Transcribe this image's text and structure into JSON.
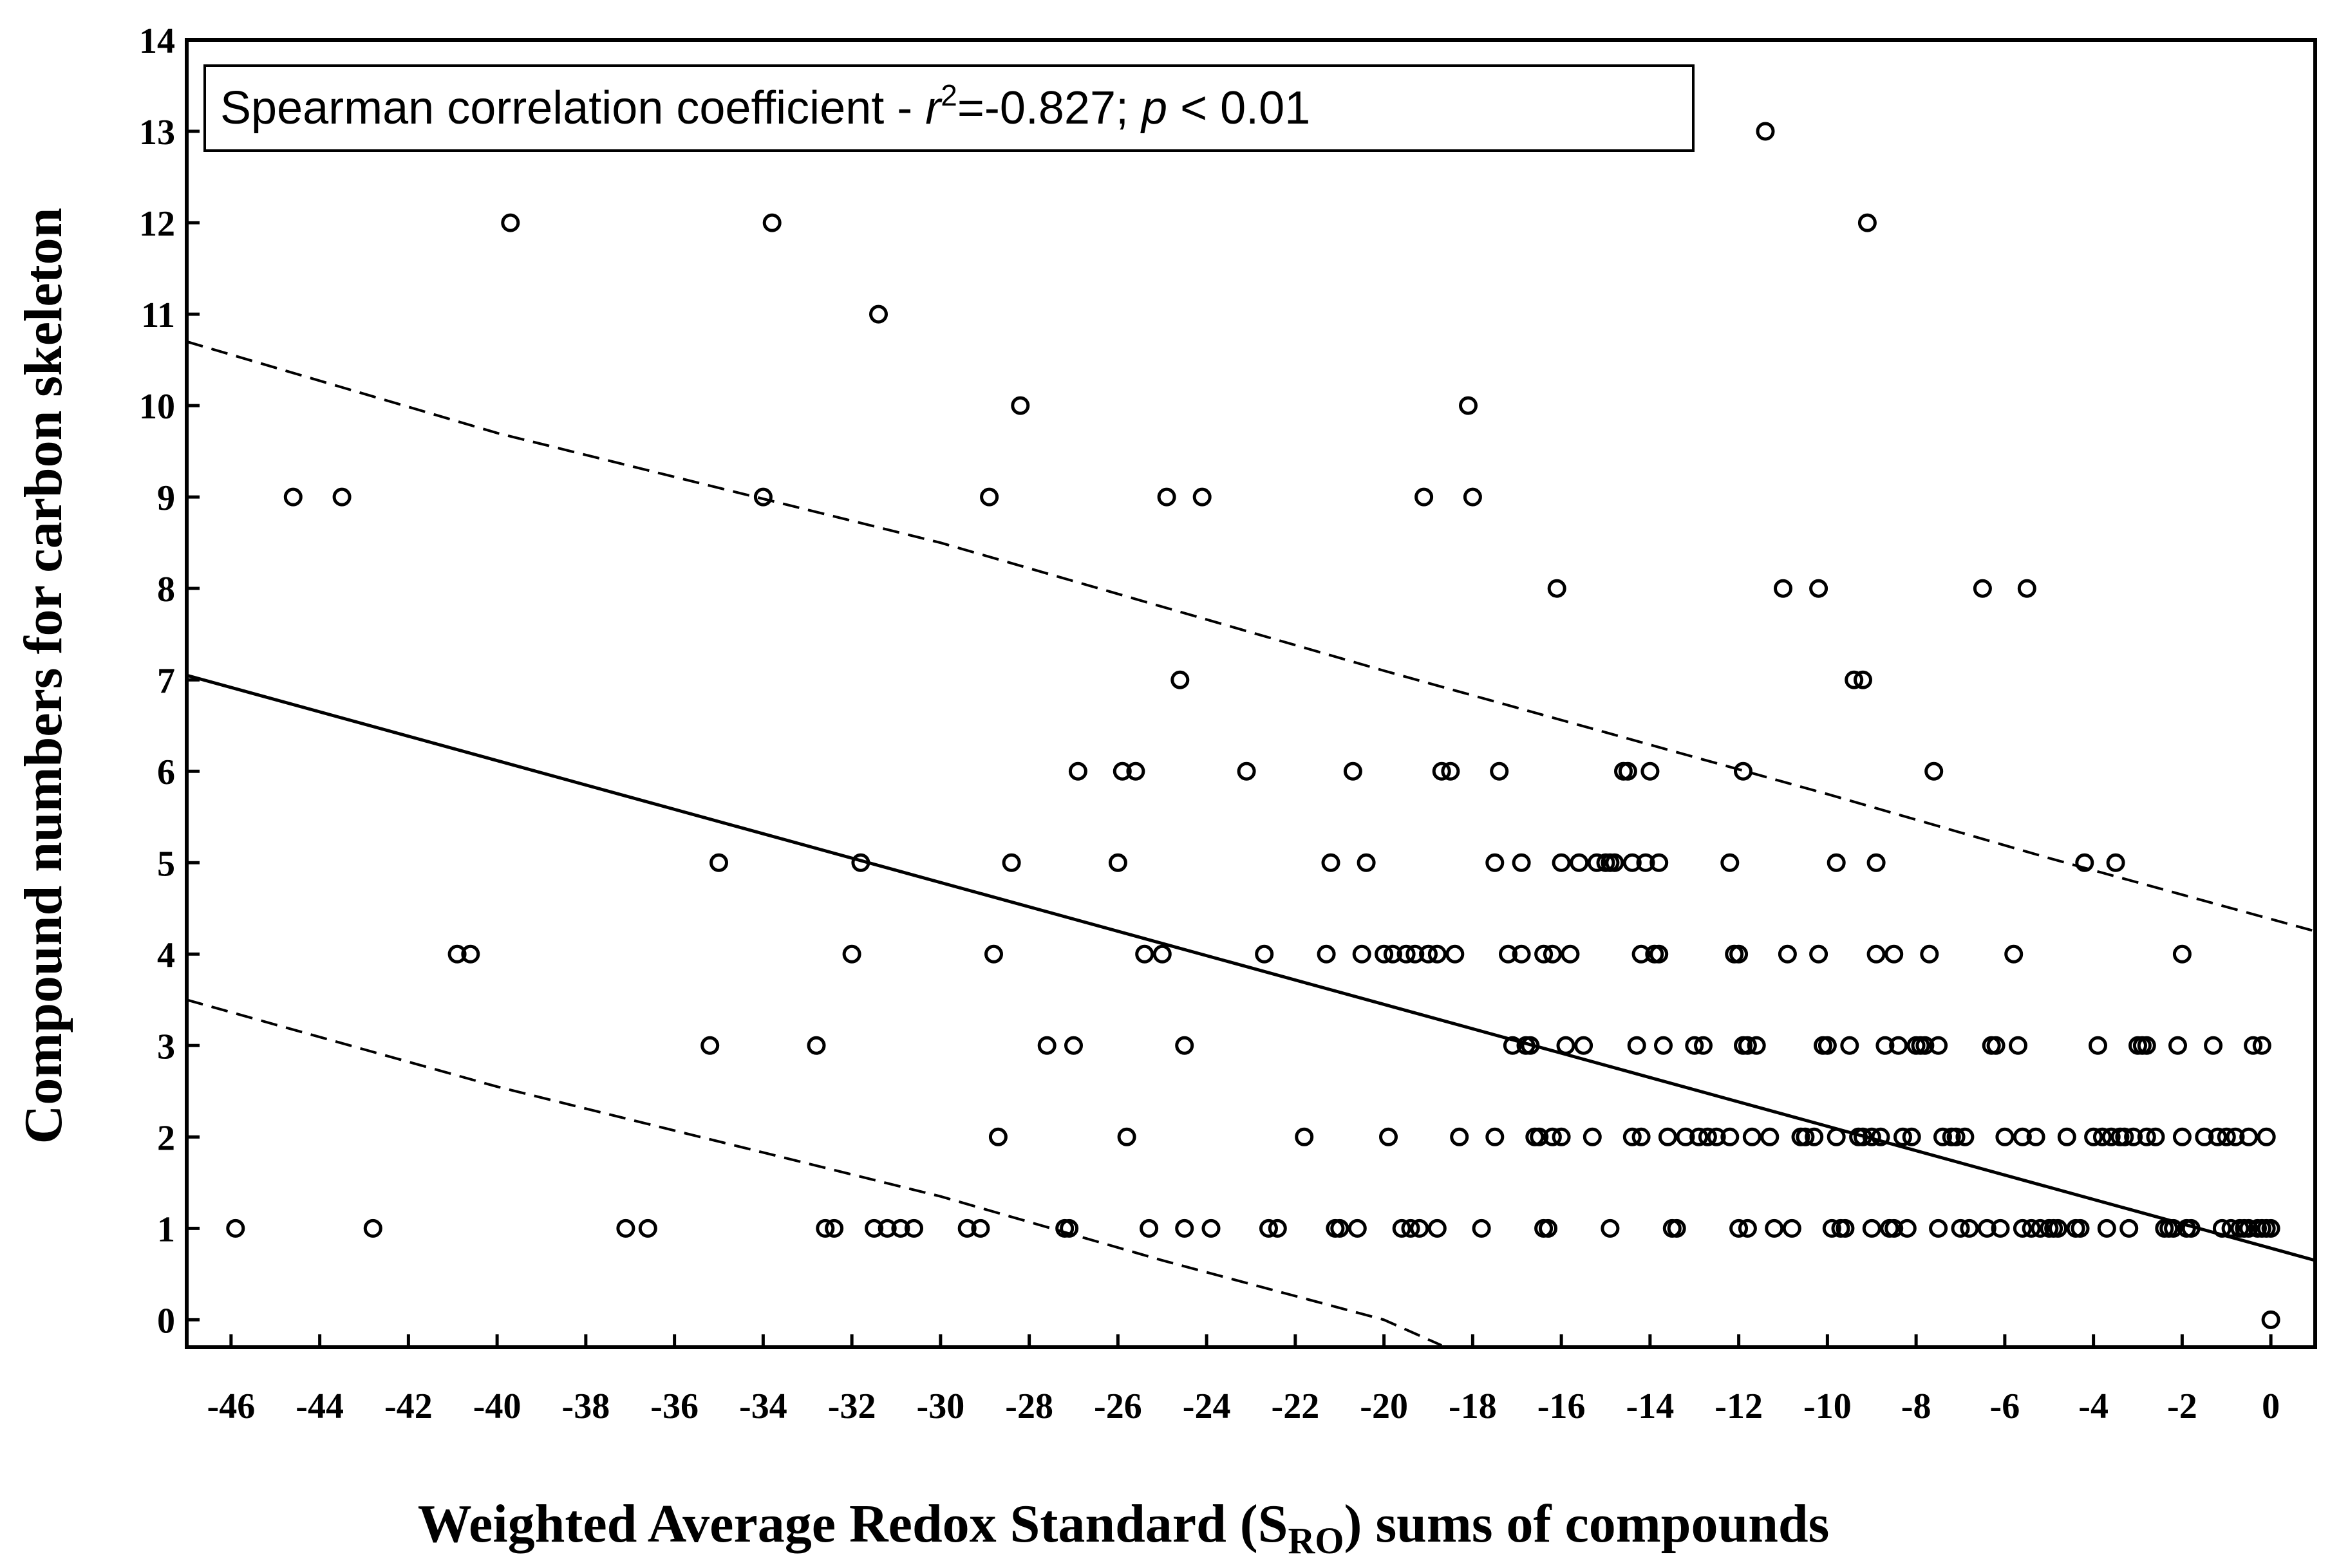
{
  "chart_data": {
    "type": "scatter",
    "title": "",
    "xlabel": "Weighted Average Redox Standard (S",
    "xlabel_subscript": "RO",
    "xlabel_suffix": ") sums of compounds",
    "ylabel": "Compound numbers for carbon skeleton",
    "annotation": {
      "prefix": "Spearman correlation coefficient - ",
      "r": "r",
      "r_power": "2",
      "r_value": "=-0.827; ",
      "p": "p",
      "p_value": " < 0.01"
    },
    "xlim": [
      -47,
      1
    ],
    "ylim": [
      -0.3,
      14
    ],
    "x_ticks": [
      -46,
      -44,
      -42,
      -40,
      -38,
      -36,
      -34,
      -32,
      -30,
      -28,
      -26,
      -24,
      -22,
      -20,
      -18,
      -16,
      -14,
      -12,
      -10,
      -8,
      -6,
      -4,
      -2,
      0
    ],
    "y_ticks": [
      0,
      1,
      2,
      3,
      4,
      5,
      6,
      7,
      8,
      9,
      10,
      11,
      12,
      13,
      14
    ],
    "grid": false,
    "regression_line": [
      [
        -47,
        7.05
      ],
      [
        1,
        0.65
      ]
    ],
    "confidence_upper": [
      [
        -47,
        10.7
      ],
      [
        -40,
        9.7
      ],
      [
        -30,
        8.5
      ],
      [
        -20,
        7.1
      ],
      [
        -10,
        5.75
      ],
      [
        -5,
        5.05
      ],
      [
        1,
        4.25
      ]
    ],
    "confidence_lower": [
      [
        -47,
        3.5
      ],
      [
        -40,
        2.55
      ],
      [
        -30,
        1.35
      ],
      [
        -25,
        0.65
      ],
      [
        -20,
        0.0
      ],
      [
        -18.7,
        -0.28
      ]
    ],
    "points": [
      [
        -45.9,
        1
      ],
      [
        -44.6,
        9
      ],
      [
        -43.5,
        9
      ],
      [
        -42.8,
        1
      ],
      [
        -40.9,
        4
      ],
      [
        -40.6,
        4
      ],
      [
        -39.7,
        12
      ],
      [
        -37.1,
        1
      ],
      [
        -36.6,
        1
      ],
      [
        -35.2,
        3
      ],
      [
        -35.0,
        5
      ],
      [
        -34.0,
        9
      ],
      [
        -33.8,
        12
      ],
      [
        -32.8,
        3
      ],
      [
        -32.6,
        1
      ],
      [
        -32.4,
        1
      ],
      [
        -32.0,
        4
      ],
      [
        -31.8,
        5
      ],
      [
        -31.5,
        1
      ],
      [
        -31.4,
        11
      ],
      [
        -31.2,
        1
      ],
      [
        -30.9,
        1
      ],
      [
        -30.6,
        1
      ],
      [
        -29.4,
        1
      ],
      [
        -29.1,
        1
      ],
      [
        -28.9,
        9
      ],
      [
        -28.8,
        4
      ],
      [
        -28.7,
        2
      ],
      [
        -28.4,
        5
      ],
      [
        -28.2,
        10
      ],
      [
        -27.6,
        3
      ],
      [
        -27.2,
        1
      ],
      [
        -27.1,
        1
      ],
      [
        -27.0,
        3
      ],
      [
        -26.9,
        6
      ],
      [
        -26.0,
        5
      ],
      [
        -25.9,
        6
      ],
      [
        -25.8,
        2
      ],
      [
        -25.6,
        6
      ],
      [
        -25.4,
        4
      ],
      [
        -25.3,
        1
      ],
      [
        -25.0,
        4
      ],
      [
        -24.9,
        9
      ],
      [
        -24.6,
        7
      ],
      [
        -24.5,
        1
      ],
      [
        -24.5,
        3
      ],
      [
        -24.1,
        9
      ],
      [
        -23.9,
        1
      ],
      [
        -23.1,
        6
      ],
      [
        -22.7,
        4
      ],
      [
        -22.6,
        1
      ],
      [
        -22.4,
        1
      ],
      [
        -21.8,
        2
      ],
      [
        -21.3,
        4
      ],
      [
        -21.2,
        5
      ],
      [
        -21.1,
        1
      ],
      [
        -21.0,
        1
      ],
      [
        -20.7,
        6
      ],
      [
        -20.6,
        1
      ],
      [
        -20.5,
        4
      ],
      [
        -20.4,
        5
      ],
      [
        -20.0,
        4
      ],
      [
        -19.9,
        2
      ],
      [
        -19.8,
        4
      ],
      [
        -19.6,
        1
      ],
      [
        -19.5,
        4
      ],
      [
        -19.4,
        1
      ],
      [
        -19.3,
        4
      ],
      [
        -19.2,
        1
      ],
      [
        -19.1,
        9
      ],
      [
        -19.0,
        4
      ],
      [
        -18.8,
        4
      ],
      [
        -18.8,
        1
      ],
      [
        -18.7,
        6
      ],
      [
        -18.5,
        6
      ],
      [
        -18.4,
        4
      ],
      [
        -18.3,
        2
      ],
      [
        -18.1,
        10
      ],
      [
        -18.0,
        9
      ],
      [
        -17.8,
        1
      ],
      [
        -17.5,
        2
      ],
      [
        -17.5,
        5
      ],
      [
        -17.4,
        6
      ],
      [
        -17.2,
        4
      ],
      [
        -17.1,
        3
      ],
      [
        -16.9,
        4
      ],
      [
        -16.9,
        5
      ],
      [
        -16.8,
        3
      ],
      [
        -16.7,
        3
      ],
      [
        -16.6,
        2
      ],
      [
        -16.5,
        2
      ],
      [
        -16.4,
        1
      ],
      [
        -16.4,
        4
      ],
      [
        -16.3,
        1
      ],
      [
        -16.2,
        2
      ],
      [
        -16.2,
        4
      ],
      [
        -16.1,
        8
      ],
      [
        -16.0,
        5
      ],
      [
        -16.0,
        2
      ],
      [
        -15.9,
        3
      ],
      [
        -15.8,
        4
      ],
      [
        -15.6,
        5
      ],
      [
        -15.5,
        3
      ],
      [
        -15.3,
        2
      ],
      [
        -15.2,
        5
      ],
      [
        -15.0,
        5
      ],
      [
        -14.9,
        1
      ],
      [
        -14.9,
        5
      ],
      [
        -14.8,
        5
      ],
      [
        -14.6,
        6
      ],
      [
        -14.5,
        6
      ],
      [
        -14.4,
        2
      ],
      [
        -14.4,
        5
      ],
      [
        -14.3,
        3
      ],
      [
        -14.2,
        4
      ],
      [
        -14.2,
        2
      ],
      [
        -14.1,
        5
      ],
      [
        -14.0,
        6
      ],
      [
        -13.9,
        4
      ],
      [
        -13.8,
        5
      ],
      [
        -13.8,
        4
      ],
      [
        -13.7,
        3
      ],
      [
        -13.6,
        2
      ],
      [
        -13.5,
        1
      ],
      [
        -13.4,
        1
      ],
      [
        -13.2,
        2
      ],
      [
        -13.0,
        3
      ],
      [
        -12.9,
        2
      ],
      [
        -12.7,
        2
      ],
      [
        -12.8,
        3
      ],
      [
        -12.5,
        2
      ],
      [
        -12.2,
        2
      ],
      [
        -12.2,
        5
      ],
      [
        -12.1,
        4
      ],
      [
        -12.0,
        4
      ],
      [
        -12.0,
        1
      ],
      [
        -11.9,
        3
      ],
      [
        -11.9,
        6
      ],
      [
        -11.8,
        1
      ],
      [
        -11.8,
        3
      ],
      [
        -11.7,
        2
      ],
      [
        -11.6,
        3
      ],
      [
        -11.4,
        13
      ],
      [
        -11.3,
        2
      ],
      [
        -11.2,
        1
      ],
      [
        -11.0,
        8
      ],
      [
        -10.9,
        4
      ],
      [
        -10.8,
        1
      ],
      [
        -10.6,
        2
      ],
      [
        -10.5,
        2
      ],
      [
        -10.3,
        2
      ],
      [
        -10.2,
        8
      ],
      [
        -10.2,
        4
      ],
      [
        -10.1,
        3
      ],
      [
        -10.0,
        3
      ],
      [
        -9.9,
        1
      ],
      [
        -9.8,
        2
      ],
      [
        -9.8,
        5
      ],
      [
        -9.7,
        1
      ],
      [
        -9.6,
        1
      ],
      [
        -9.5,
        3
      ],
      [
        -9.4,
        7
      ],
      [
        -9.3,
        2
      ],
      [
        -9.2,
        7
      ],
      [
        -9.2,
        2
      ],
      [
        -9.1,
        12
      ],
      [
        -9.0,
        1
      ],
      [
        -9.0,
        2
      ],
      [
        -8.9,
        5
      ],
      [
        -8.9,
        4
      ],
      [
        -8.8,
        2
      ],
      [
        -8.7,
        3
      ],
      [
        -8.6,
        1
      ],
      [
        -8.5,
        4
      ],
      [
        -8.5,
        1
      ],
      [
        -8.4,
        3
      ],
      [
        -8.3,
        2
      ],
      [
        -8.2,
        1
      ],
      [
        -8.1,
        2
      ],
      [
        -8.0,
        3
      ],
      [
        -7.9,
        3
      ],
      [
        -7.8,
        3
      ],
      [
        -7.7,
        4
      ],
      [
        -7.6,
        6
      ],
      [
        -7.5,
        3
      ],
      [
        -7.5,
        1
      ],
      [
        -7.4,
        2
      ],
      [
        -7.2,
        2
      ],
      [
        -7.1,
        2
      ],
      [
        -7.0,
        1
      ],
      [
        -6.9,
        2
      ],
      [
        -6.8,
        1
      ],
      [
        -6.5,
        8
      ],
      [
        -6.4,
        1
      ],
      [
        -6.3,
        3
      ],
      [
        -6.2,
        3
      ],
      [
        -6.1,
        1
      ],
      [
        -6.0,
        2
      ],
      [
        -5.8,
        4
      ],
      [
        -5.7,
        3
      ],
      [
        -5.6,
        2
      ],
      [
        -5.6,
        1
      ],
      [
        -5.5,
        8
      ],
      [
        -5.4,
        1
      ],
      [
        -5.3,
        2
      ],
      [
        -5.2,
        1
      ],
      [
        -5.0,
        1
      ],
      [
        -4.9,
        1
      ],
      [
        -4.8,
        1
      ],
      [
        -4.6,
        2
      ],
      [
        -4.4,
        1
      ],
      [
        -4.3,
        1
      ],
      [
        -4.2,
        5
      ],
      [
        -4.0,
        2
      ],
      [
        -3.9,
        3
      ],
      [
        -3.8,
        2
      ],
      [
        -3.7,
        1
      ],
      [
        -3.6,
        2
      ],
      [
        -3.5,
        5
      ],
      [
        -3.4,
        2
      ],
      [
        -3.3,
        2
      ],
      [
        -3.2,
        1
      ],
      [
        -3.1,
        2
      ],
      [
        -3.0,
        3
      ],
      [
        -2.9,
        3
      ],
      [
        -2.8,
        3
      ],
      [
        -2.8,
        2
      ],
      [
        -2.6,
        2
      ],
      [
        -2.4,
        1
      ],
      [
        -2.3,
        1
      ],
      [
        -2.2,
        1
      ],
      [
        -2.1,
        3
      ],
      [
        -2.0,
        2
      ],
      [
        -2.0,
        4
      ],
      [
        -1.9,
        1
      ],
      [
        -1.8,
        1
      ],
      [
        -1.5,
        2
      ],
      [
        -1.3,
        3
      ],
      [
        -1.2,
        2
      ],
      [
        -1.1,
        1
      ],
      [
        -1.0,
        2
      ],
      [
        -0.9,
        1
      ],
      [
        -0.8,
        2
      ],
      [
        -0.7,
        1
      ],
      [
        -0.6,
        1
      ],
      [
        -0.5,
        2
      ],
      [
        -0.5,
        1
      ],
      [
        -0.4,
        3
      ],
      [
        -0.3,
        1
      ],
      [
        -0.2,
        3
      ],
      [
        -0.2,
        1
      ],
      [
        -0.1,
        2
      ],
      [
        -0.1,
        1
      ],
      [
        0.0,
        1
      ],
      [
        0.0,
        0
      ]
    ]
  }
}
